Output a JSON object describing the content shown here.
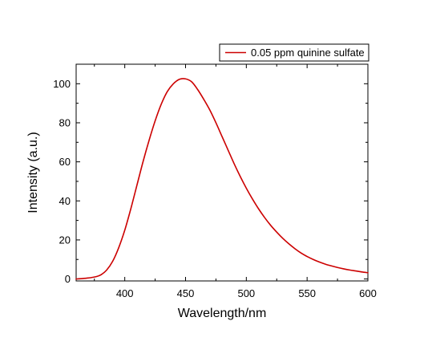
{
  "chart_data": {
    "type": "line",
    "title": "",
    "xlabel": "Wavelength/nm",
    "ylabel": "Intensity (a.u.)",
    "xlim": [
      360,
      600
    ],
    "ylim": [
      -1,
      110
    ],
    "x_ticks": [
      400,
      450,
      500,
      550,
      600
    ],
    "x_tick_labels": [
      "400",
      "450",
      "500",
      "550",
      "600"
    ],
    "y_ticks": [
      0,
      20,
      40,
      60,
      80,
      100
    ],
    "y_tick_labels": [
      "0",
      "20",
      "40",
      "60",
      "80",
      "100"
    ],
    "grid": false,
    "legend_position": "top-right",
    "series": [
      {
        "name": "0.05 ppm quinine sulfate",
        "color": "#cc0000",
        "x": [
          360,
          365,
          370,
          375,
          380,
          385,
          390,
          395,
          400,
          405,
          410,
          415,
          420,
          425,
          430,
          435,
          440,
          445,
          450,
          455,
          460,
          465,
          470,
          475,
          480,
          485,
          490,
          495,
          500,
          505,
          510,
          515,
          520,
          525,
          530,
          535,
          540,
          545,
          550,
          555,
          560,
          565,
          570,
          575,
          580,
          585,
          590,
          595,
          600
        ],
        "y": [
          0,
          0.2,
          0.5,
          1.0,
          2.0,
          4.5,
          9.0,
          16.0,
          25.0,
          36.0,
          48.0,
          60.0,
          71.0,
          81.0,
          89.5,
          96.0,
          100.0,
          102.3,
          102.5,
          101.0,
          97.0,
          92.0,
          86.5,
          80.0,
          73.0,
          66.0,
          59.0,
          52.5,
          46.5,
          41.0,
          36.0,
          31.5,
          27.5,
          24.0,
          20.8,
          18.0,
          15.5,
          13.3,
          11.5,
          10.0,
          8.7,
          7.6,
          6.7,
          5.9,
          5.2,
          4.6,
          4.1,
          3.6,
          3.2
        ]
      }
    ]
  }
}
